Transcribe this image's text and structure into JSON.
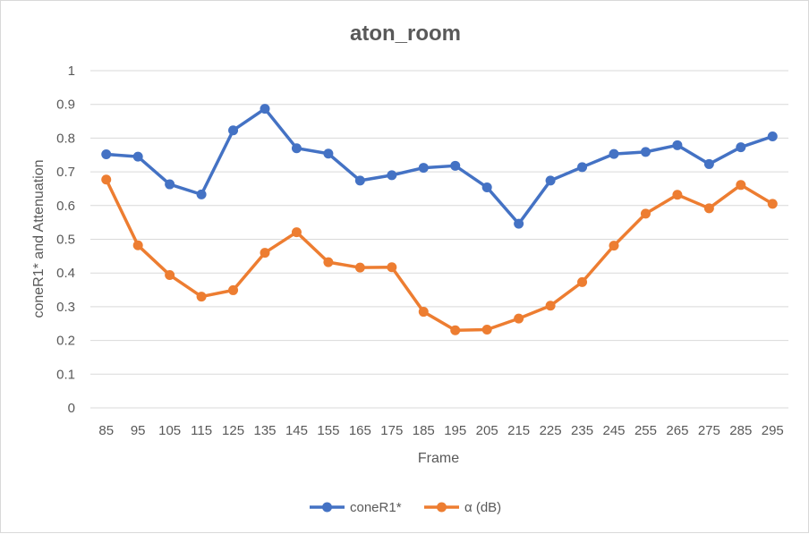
{
  "chart_data": {
    "type": "line",
    "title": "aton_room",
    "xlabel": "Frame",
    "ylabel": "coneR1* and Attenuation",
    "ylim": [
      0,
      1
    ],
    "yticks": [
      "0",
      "0.1",
      "0.2",
      "0.3",
      "0.4",
      "0.5",
      "0.6",
      "0.7",
      "0.8",
      "0.9",
      "1"
    ],
    "grid": true,
    "legend_position": "bottom",
    "categories": [
      "85",
      "95",
      "105",
      "115",
      "125",
      "135",
      "145",
      "155",
      "165",
      "175",
      "185",
      "195",
      "205",
      "215",
      "225",
      "235",
      "245",
      "255",
      "265",
      "275",
      "285",
      "295"
    ],
    "series": [
      {
        "name": "coneR1*",
        "color": "#4472c4",
        "values": [
          0.752,
          0.745,
          0.663,
          0.633,
          0.823,
          0.887,
          0.77,
          0.754,
          0.674,
          0.69,
          0.712,
          0.718,
          0.654,
          0.546,
          0.674,
          0.714,
          0.753,
          0.759,
          0.779,
          0.723,
          0.773,
          0.805
        ]
      },
      {
        "name": "α (dB)",
        "color": "#ed7d31",
        "values": [
          0.677,
          0.482,
          0.394,
          0.33,
          0.349,
          0.46,
          0.521,
          0.432,
          0.416,
          0.417,
          0.285,
          0.23,
          0.232,
          0.265,
          0.303,
          0.373,
          0.481,
          0.576,
          0.632,
          0.592,
          0.661,
          0.605
        ]
      }
    ]
  }
}
